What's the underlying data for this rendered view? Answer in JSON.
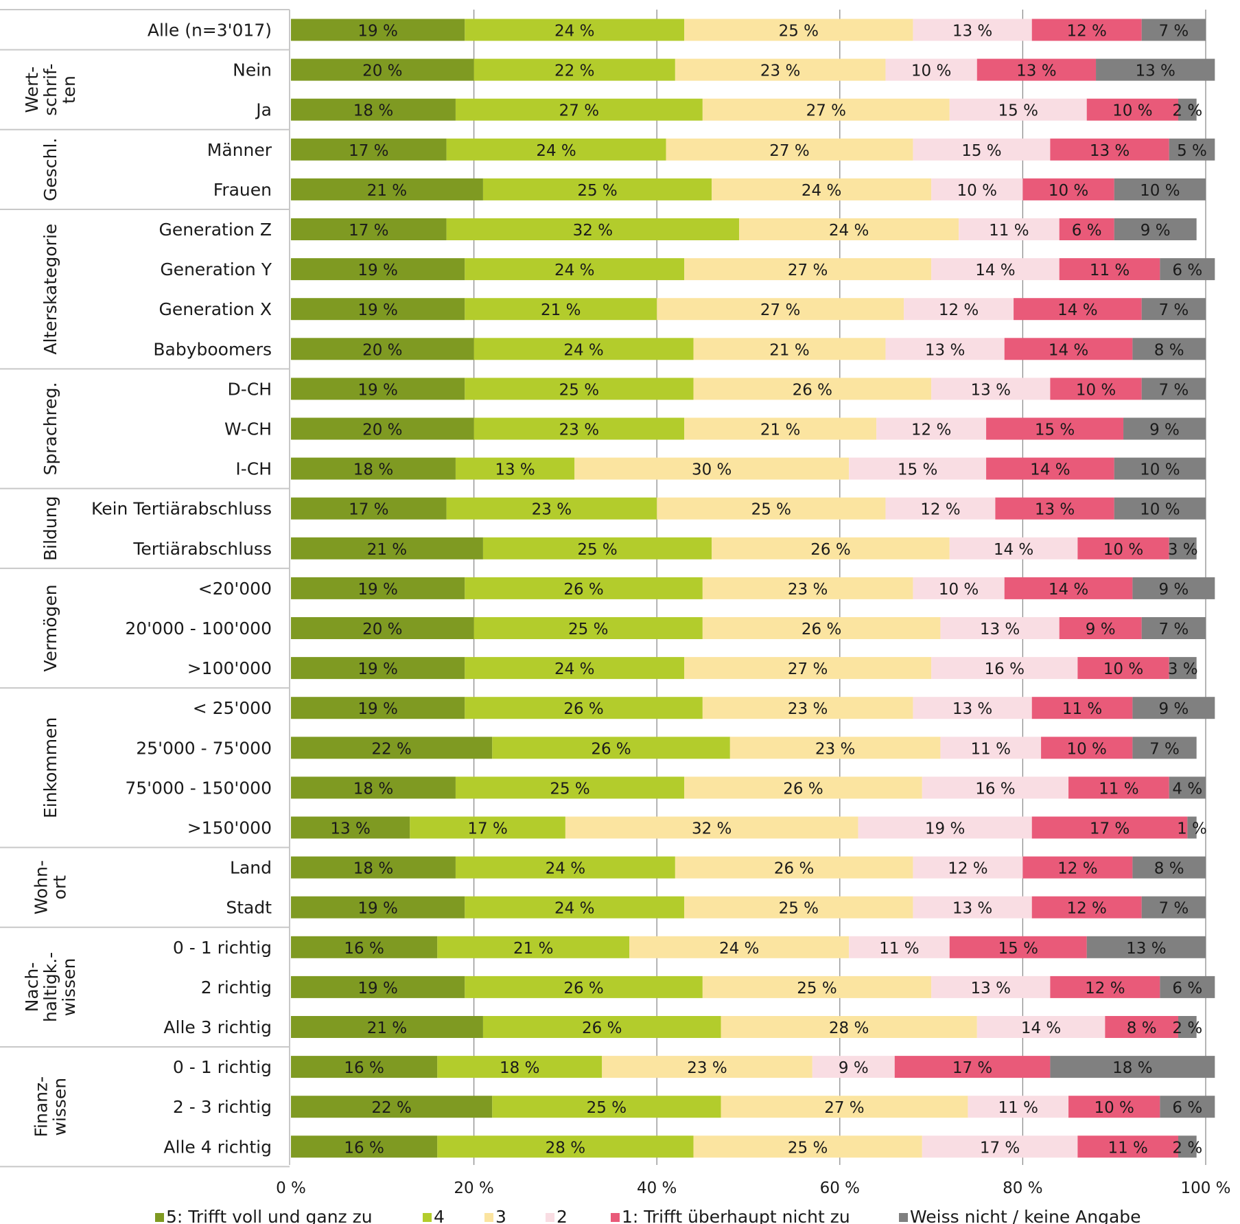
{
  "chart_data": {
    "type": "bar",
    "orientation": "horizontal",
    "stacked": true,
    "percent_suffix": " %",
    "xlim": [
      0,
      100
    ],
    "xticks": [
      "0 %",
      "20 %",
      "40 %",
      "60 %",
      "80 %",
      "100 %"
    ],
    "grid": true,
    "legend_position": "bottom",
    "series": [
      {
        "name": "5: Trifft voll und ganz zu",
        "color": "#7f9a22"
      },
      {
        "name": "4",
        "color": "#b3cc2c"
      },
      {
        "name": "3",
        "color": "#fbe4a0"
      },
      {
        "name": "2",
        "color": "#f9dde3"
      },
      {
        "name": "1: Trifft überhaupt nicht zu",
        "color": "#e95a79"
      },
      {
        "name": "Weiss nicht / keine Angabe",
        "color": "#808080"
      }
    ],
    "groups": [
      {
        "label": [],
        "rows": [
          {
            "label": "Alle (n=3'017)",
            "values": [
              19,
              24,
              25,
              13,
              12,
              7
            ]
          }
        ]
      },
      {
        "label": [
          "Wert-",
          "schrif-",
          "ten"
        ],
        "rows": [
          {
            "label": "Nein",
            "values": [
              20,
              22,
              23,
              10,
              13,
              13
            ]
          },
          {
            "label": "Ja",
            "values": [
              18,
              27,
              27,
              15,
              10,
              2
            ]
          }
        ]
      },
      {
        "label": [
          "Geschl."
        ],
        "rows": [
          {
            "label": "Männer",
            "values": [
              17,
              24,
              27,
              15,
              13,
              5
            ]
          },
          {
            "label": "Frauen",
            "values": [
              21,
              25,
              24,
              10,
              10,
              10
            ]
          }
        ]
      },
      {
        "label": [
          "Alterskategorie"
        ],
        "rows": [
          {
            "label": "Generation Z",
            "values": [
              17,
              32,
              24,
              11,
              6,
              9
            ]
          },
          {
            "label": "Generation Y",
            "values": [
              19,
              24,
              27,
              14,
              11,
              6
            ]
          },
          {
            "label": "Generation X",
            "values": [
              19,
              21,
              27,
              12,
              14,
              7
            ]
          },
          {
            "label": "Babyboomers",
            "values": [
              20,
              24,
              21,
              13,
              14,
              8
            ]
          }
        ]
      },
      {
        "label": [
          "Sprachreg."
        ],
        "rows": [
          {
            "label": "D-CH",
            "values": [
              19,
              25,
              26,
              13,
              10,
              7
            ]
          },
          {
            "label": "W-CH",
            "values": [
              20,
              23,
              21,
              12,
              15,
              9
            ]
          },
          {
            "label": "I-CH",
            "values": [
              18,
              13,
              30,
              15,
              14,
              10
            ]
          }
        ]
      },
      {
        "label": [
          "Bildung"
        ],
        "rows": [
          {
            "label": "Kein Tertiärabschluss",
            "values": [
              17,
              23,
              25,
              12,
              13,
              10
            ]
          },
          {
            "label": "Tertiärabschluss",
            "values": [
              21,
              25,
              26,
              14,
              10,
              3
            ]
          }
        ]
      },
      {
        "label": [
          "Vermögen"
        ],
        "rows": [
          {
            "label": "<20'000",
            "values": [
              19,
              26,
              23,
              10,
              14,
              9
            ]
          },
          {
            "label": "20'000 - 100'000",
            "values": [
              20,
              25,
              26,
              13,
              9,
              7
            ]
          },
          {
            "label": ">100'000",
            "values": [
              19,
              24,
              27,
              16,
              10,
              3
            ]
          }
        ]
      },
      {
        "label": [
          "Einkommen"
        ],
        "rows": [
          {
            "label": "< 25'000",
            "values": [
              19,
              26,
              23,
              13,
              11,
              9
            ]
          },
          {
            "label": "25'000 - 75'000",
            "values": [
              22,
              26,
              23,
              11,
              10,
              7
            ]
          },
          {
            "label": "75'000 - 150'000",
            "values": [
              18,
              25,
              26,
              16,
              11,
              4
            ]
          },
          {
            "label": ">150'000",
            "values": [
              13,
              17,
              32,
              19,
              17,
              1
            ]
          }
        ]
      },
      {
        "label": [
          "Wohn-",
          "ort"
        ],
        "rows": [
          {
            "label": "Land",
            "values": [
              18,
              24,
              26,
              12,
              12,
              8
            ]
          },
          {
            "label": "Stadt",
            "values": [
              19,
              24,
              25,
              13,
              12,
              7
            ]
          }
        ]
      },
      {
        "label": [
          "Nach-",
          "haltigk.-",
          "wissen"
        ],
        "rows": [
          {
            "label": "0 - 1 richtig",
            "values": [
              16,
              21,
              24,
              11,
              15,
              13
            ]
          },
          {
            "label": "2 richtig",
            "values": [
              19,
              26,
              25,
              13,
              12,
              6
            ]
          },
          {
            "label": "Alle 3 richtig",
            "values": [
              21,
              26,
              28,
              14,
              8,
              2
            ]
          }
        ]
      },
      {
        "label": [
          "Finanz-",
          "wissen"
        ],
        "rows": [
          {
            "label": "0 - 1 richtig",
            "values": [
              16,
              18,
              23,
              9,
              17,
              18
            ]
          },
          {
            "label": "2 - 3 richtig",
            "values": [
              22,
              25,
              27,
              11,
              10,
              6
            ]
          },
          {
            "label": "Alle 4 richtig",
            "values": [
              16,
              28,
              25,
              17,
              11,
              2
            ]
          }
        ]
      }
    ]
  }
}
